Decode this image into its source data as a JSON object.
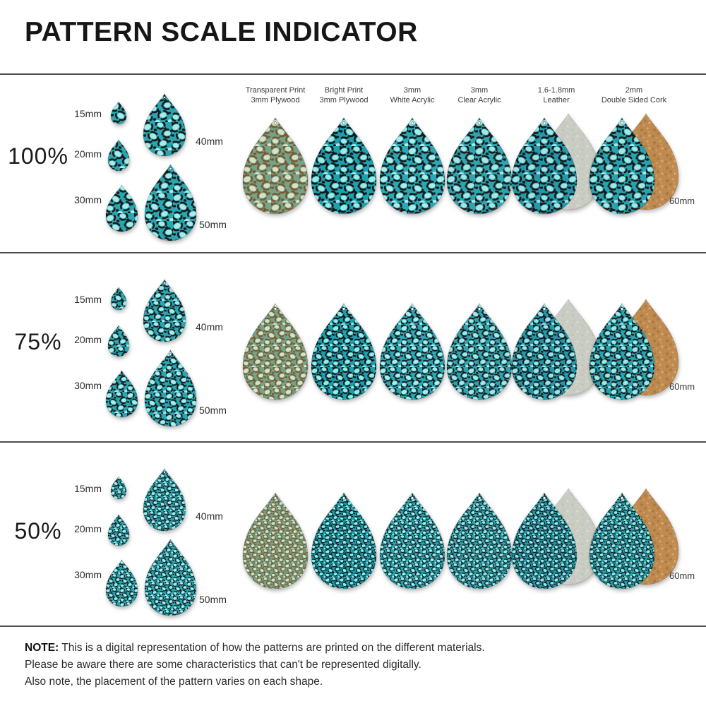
{
  "title": "PATTERN SCALE INDICATOR",
  "sections": [
    {
      "scale_label": "100%",
      "scale": 1.0
    },
    {
      "scale_label": "75%",
      "scale": 0.75
    },
    {
      "scale_label": "50%",
      "scale": 0.5
    }
  ],
  "size_demo": {
    "items": [
      {
        "label": "15mm",
        "mm": 15
      },
      {
        "label": "20mm",
        "mm": 20
      },
      {
        "label": "30mm",
        "mm": 30
      },
      {
        "label": "40mm",
        "mm": 40
      },
      {
        "label": "50mm",
        "mm": 50
      }
    ]
  },
  "sample_size_label": "60mm",
  "materials": [
    {
      "line1": "Transparent Print",
      "line2": "3mm Plywood",
      "bg": "#74A38B",
      "spot_dark": "#7A5A30",
      "spot_light": "#D6E1C6"
    },
    {
      "line1": "Bright Print",
      "line2": "3mm Plywood",
      "bg": "#1C9FAE",
      "spot_dark": "#141414",
      "spot_light": "#9BE8E4"
    },
    {
      "line1": "3mm",
      "line2": "White Acrylic",
      "bg": "#2BA8B5",
      "spot_dark": "#1A1A1A",
      "spot_light": "#A9ECEA"
    },
    {
      "line1": "3mm",
      "line2": "Clear Acrylic",
      "bg": "#2EA4B0",
      "spot_dark": "#1C1C1C",
      "spot_light": "#A5E6E3"
    },
    {
      "line1": "1.6-1.8mm",
      "line2": "Leather",
      "bg": "#2398A8",
      "spot_dark": "#17171C",
      "spot_light": "#9FE3E0",
      "back": "suede",
      "back_color": "#C9CCC2"
    },
    {
      "line1": "2mm",
      "line2": "Double Sided Cork",
      "bg": "#27A2B0",
      "spot_dark": "#191919",
      "spot_light": "#A0E6E2",
      "back": "cork",
      "back_color": "#BE8A50"
    }
  ],
  "demo_colors": {
    "bg": "#2AA6B3",
    "spot_dark": "#1A1A1A",
    "spot_light": "#A8EAE6"
  },
  "note": {
    "label": "NOTE:",
    "line1": "This is a digital representation of how the patterns are printed on the different materials.",
    "line2": "Please be aware there are some characteristics that can't be represented digitally.",
    "line3": "Also note, the placement of the pattern varies on each shape."
  }
}
